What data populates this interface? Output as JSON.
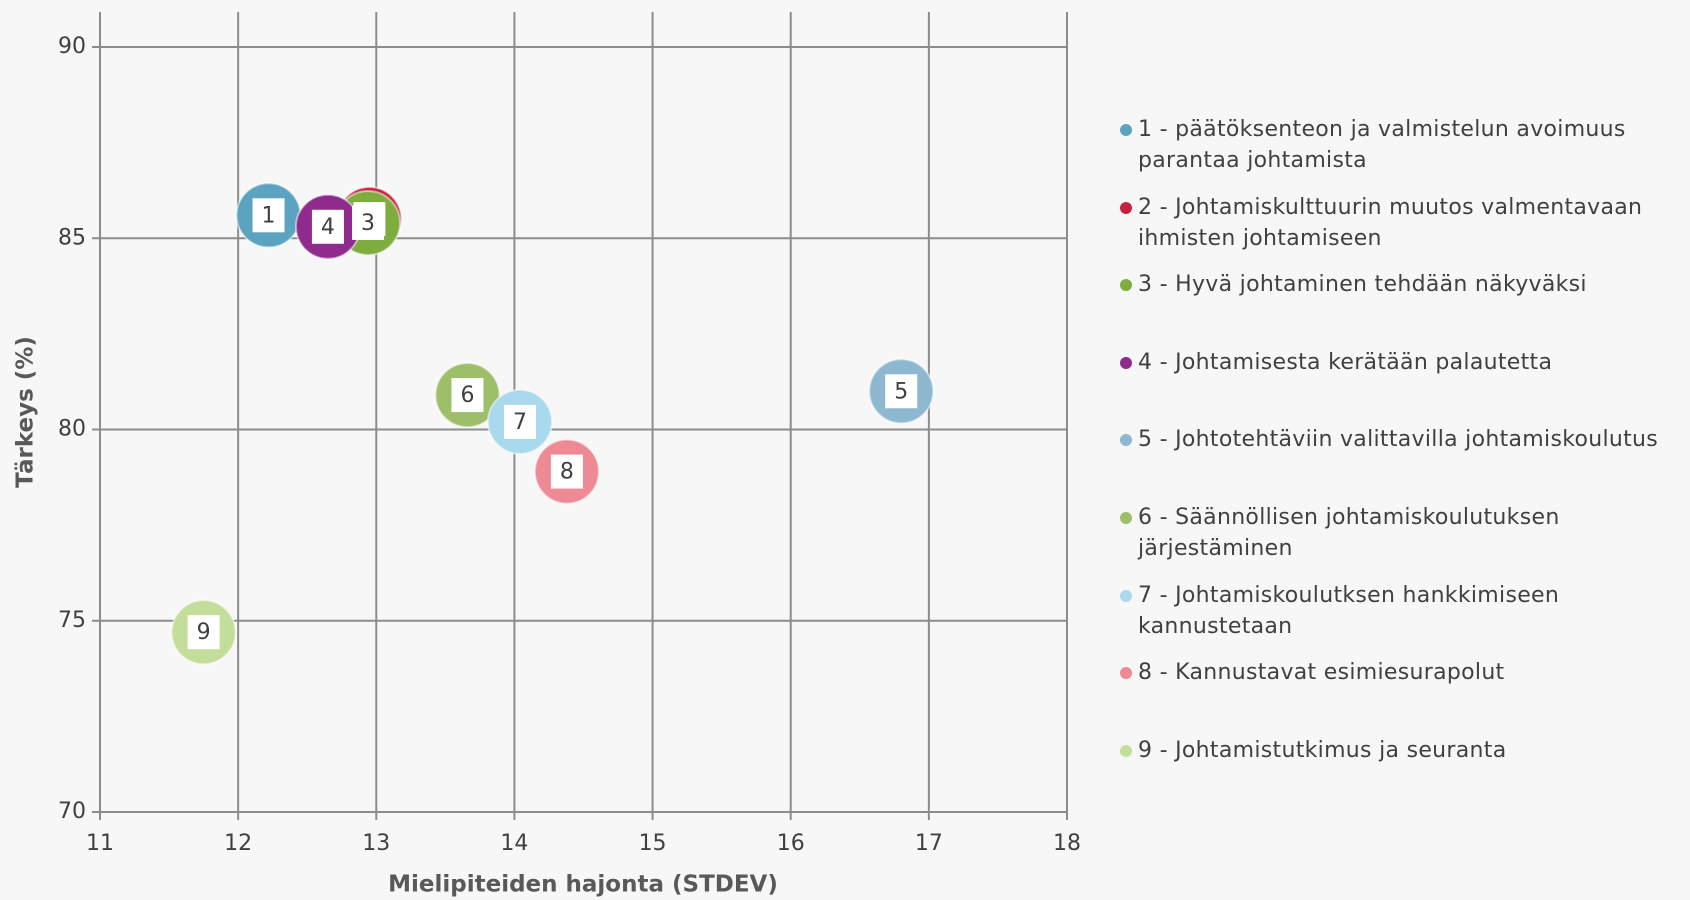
{
  "chart_data": {
    "type": "scatter",
    "x_label": "Mielipiteiden hajonta (STDEV)",
    "y_label": "Tärkeys (%)",
    "xlim": [
      11,
      18
    ],
    "xticks": [
      11,
      12,
      13,
      14,
      15,
      16,
      17,
      18
    ],
    "ylim": [
      70,
      90
    ],
    "yticks": [
      70,
      75,
      80,
      85,
      90
    ],
    "grid": true,
    "legend": "right",
    "series": [
      {
        "name": "1 - päätöksenteon ja valmistelun avoimuus parantaa johtamista",
        "label": "1",
        "color": "#5ba3c0",
        "x": [
          12.22
        ],
        "values": [
          85.6
        ]
      },
      {
        "name": "2 - Johtamiskulttuurin muutos valmentavaan ihmisten johtamiseen",
        "label": "2",
        "color": "#c8203f",
        "x": [
          12.95
        ],
        "values": [
          85.5
        ]
      },
      {
        "name": "3 - Hyvä johtaminen tehdään näkyväksi",
        "label": "3",
        "color": "#7fac3e",
        "x": [
          12.94
        ],
        "values": [
          85.4
        ]
      },
      {
        "name": "4 - Johtamisesta kerätään palautetta",
        "label": "4",
        "color": "#8e2b8c",
        "x": [
          12.65
        ],
        "values": [
          85.3
        ]
      },
      {
        "name": "5 - Johtotehtäviin valittavilla johtamiskoulutus",
        "label": "5",
        "color": "#8db8cf",
        "x": [
          16.8
        ],
        "values": [
          81.0
        ]
      },
      {
        "name": "6 - Säännöllisen johtamiskoulutuksen järjestäminen",
        "label": "6",
        "color": "#9ebf6a",
        "x": [
          13.66
        ],
        "values": [
          80.9
        ]
      },
      {
        "name": "7 - Johtamiskoulutksen hankkimiseen kannustetaan",
        "label": "7",
        "color": "#a9d9ed",
        "x": [
          14.04
        ],
        "values": [
          80.2
        ]
      },
      {
        "name": "8 - Kannustavat esimiesurapolut",
        "label": "8",
        "color": "#ee8a94",
        "x": [
          14.38
        ],
        "values": [
          78.9
        ]
      },
      {
        "name": "9 - Johtamistutkimus ja seuranta",
        "label": "9",
        "color": "#c3dd9a",
        "x": [
          11.75
        ],
        "values": [
          74.7
        ]
      }
    ]
  }
}
